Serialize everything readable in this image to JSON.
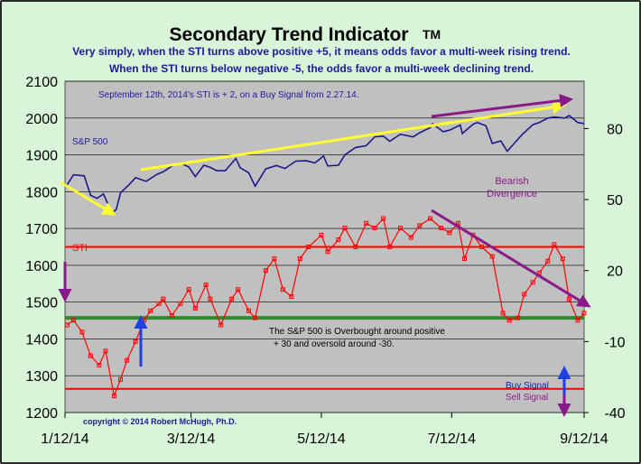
{
  "chart_data": {
    "type": "line",
    "title": "Secondary Trend Indicator",
    "title_mark": "TM",
    "subtitle_lines": [
      "Very simply, when the STI turns above positive +5, it means odds favor a multi-week rising trend.",
      "When the STI turns below negative -5, the odds favor a multi-week declining trend."
    ],
    "status_note": "September 12th, 2014's STI is + 2,  on a Buy Signal from 2.27.14.",
    "left_axis": {
      "range": [
        1200,
        2100
      ],
      "ticks": [
        "1200",
        "1300",
        "1400",
        "1500",
        "1600",
        "1700",
        "1800",
        "1900",
        "2000",
        "2100"
      ]
    },
    "right_axis": {
      "range": [
        -40,
        100
      ],
      "ticks": [
        "-40",
        "-10",
        "20",
        "50",
        "80"
      ]
    },
    "x_ticks": [
      "1/12/14",
      "3/12/14",
      "5/12/14",
      "7/12/14",
      "9/12/14"
    ],
    "x_range": [
      "2014-01-12",
      "2014-09-12"
    ],
    "series": [
      {
        "name": "S&P 500",
        "axis": "left",
        "color": "#1a1a8c",
        "points": [
          [
            "2014-01-13",
            1819
          ],
          [
            "2014-01-16",
            1846
          ],
          [
            "2014-01-21",
            1843
          ],
          [
            "2014-01-24",
            1790
          ],
          [
            "2014-01-27",
            1782
          ],
          [
            "2014-01-30",
            1794
          ],
          [
            "2014-02-03",
            1741
          ],
          [
            "2014-02-05",
            1752
          ],
          [
            "2014-02-07",
            1797
          ],
          [
            "2014-02-11",
            1819
          ],
          [
            "2014-02-14",
            1838
          ],
          [
            "2014-02-19",
            1828
          ],
          [
            "2014-02-24",
            1847
          ],
          [
            "2014-02-27",
            1854
          ],
          [
            "2014-03-04",
            1873
          ],
          [
            "2014-03-07",
            1878
          ],
          [
            "2014-03-11",
            1867
          ],
          [
            "2014-03-14",
            1841
          ],
          [
            "2014-03-18",
            1872
          ],
          [
            "2014-03-21",
            1866
          ],
          [
            "2014-03-24",
            1857
          ],
          [
            "2014-03-28",
            1857
          ],
          [
            "2014-04-02",
            1890
          ],
          [
            "2014-04-04",
            1865
          ],
          [
            "2014-04-08",
            1851
          ],
          [
            "2014-04-11",
            1815
          ],
          [
            "2014-04-16",
            1862
          ],
          [
            "2014-04-21",
            1871
          ],
          [
            "2014-04-25",
            1863
          ],
          [
            "2014-04-30",
            1883
          ],
          [
            "2014-05-05",
            1884
          ],
          [
            "2014-05-09",
            1878
          ],
          [
            "2014-05-13",
            1897
          ],
          [
            "2014-05-15",
            1870
          ],
          [
            "2014-05-20",
            1872
          ],
          [
            "2014-05-23",
            1900
          ],
          [
            "2014-05-28",
            1920
          ],
          [
            "2014-06-02",
            1925
          ],
          [
            "2014-06-06",
            1949
          ],
          [
            "2014-06-10",
            1951
          ],
          [
            "2014-06-13",
            1937
          ],
          [
            "2014-06-18",
            1956
          ],
          [
            "2014-06-24",
            1949
          ],
          [
            "2014-06-27",
            1960
          ],
          [
            "2014-07-02",
            1974
          ],
          [
            "2014-07-03",
            1985
          ],
          [
            "2014-07-08",
            1963
          ],
          [
            "2014-07-11",
            1967
          ],
          [
            "2014-07-16",
            1981
          ],
          [
            "2014-07-17",
            1958
          ],
          [
            "2014-07-22",
            1983
          ],
          [
            "2014-07-24",
            1988
          ],
          [
            "2014-07-28",
            1979
          ],
          [
            "2014-07-31",
            1931
          ],
          [
            "2014-08-04",
            1938
          ],
          [
            "2014-08-07",
            1910
          ],
          [
            "2014-08-11",
            1936
          ],
          [
            "2014-08-14",
            1955
          ],
          [
            "2014-08-19",
            1982
          ],
          [
            "2014-08-22",
            1988
          ],
          [
            "2014-08-26",
            2000
          ],
          [
            "2014-08-29",
            2003
          ],
          [
            "2014-09-03",
            2000
          ],
          [
            "2014-09-05",
            2007
          ],
          [
            "2014-09-09",
            1988
          ],
          [
            "2014-09-12",
            1985
          ]
        ]
      },
      {
        "name": "STI",
        "axis": "right",
        "color": "#ff0000",
        "points": [
          [
            "2014-01-13",
            -3
          ],
          [
            "2014-01-16",
            -1
          ],
          [
            "2014-01-20",
            -6
          ],
          [
            "2014-01-24",
            -16
          ],
          [
            "2014-01-28",
            -20
          ],
          [
            "2014-01-31",
            -14
          ],
          [
            "2014-02-04",
            -33
          ],
          [
            "2014-02-07",
            -26
          ],
          [
            "2014-02-10",
            -18
          ],
          [
            "2014-02-14",
            -10
          ],
          [
            "2014-02-18",
            -1
          ],
          [
            "2014-02-21",
            3
          ],
          [
            "2014-02-25",
            6
          ],
          [
            "2014-02-27",
            8
          ],
          [
            "2014-03-03",
            1
          ],
          [
            "2014-03-07",
            6
          ],
          [
            "2014-03-11",
            12
          ],
          [
            "2014-03-14",
            4
          ],
          [
            "2014-03-19",
            14
          ],
          [
            "2014-03-21",
            8
          ],
          [
            "2014-03-26",
            -3
          ],
          [
            "2014-03-31",
            8
          ],
          [
            "2014-04-03",
            12
          ],
          [
            "2014-04-08",
            3
          ],
          [
            "2014-04-11",
            0
          ],
          [
            "2014-04-16",
            20
          ],
          [
            "2014-04-20",
            25
          ],
          [
            "2014-04-24",
            12
          ],
          [
            "2014-04-28",
            9
          ],
          [
            "2014-05-02",
            25
          ],
          [
            "2014-05-06",
            30
          ],
          [
            "2014-05-12",
            35
          ],
          [
            "2014-05-15",
            28
          ],
          [
            "2014-05-20",
            33
          ],
          [
            "2014-05-23",
            38
          ],
          [
            "2014-05-28",
            30
          ],
          [
            "2014-06-02",
            40
          ],
          [
            "2014-06-06",
            38
          ],
          [
            "2014-06-10",
            42
          ],
          [
            "2014-06-13",
            30
          ],
          [
            "2014-06-18",
            38
          ],
          [
            "2014-06-23",
            34
          ],
          [
            "2014-06-27",
            39
          ],
          [
            "2014-07-02",
            42
          ],
          [
            "2014-07-07",
            38
          ],
          [
            "2014-07-11",
            36
          ],
          [
            "2014-07-15",
            40
          ],
          [
            "2014-07-18",
            25
          ],
          [
            "2014-07-22",
            35
          ],
          [
            "2014-07-26",
            30
          ],
          [
            "2014-07-31",
            26
          ],
          [
            "2014-08-05",
            2
          ],
          [
            "2014-08-08",
            -1
          ],
          [
            "2014-08-12",
            0
          ],
          [
            "2014-08-15",
            10
          ],
          [
            "2014-08-19",
            15
          ],
          [
            "2014-08-22",
            19
          ],
          [
            "2014-08-26",
            24
          ],
          [
            "2014-08-29",
            31
          ],
          [
            "2014-09-02",
            25
          ],
          [
            "2014-09-05",
            8
          ],
          [
            "2014-09-09",
            -1
          ],
          [
            "2014-09-12",
            2
          ]
        ]
      }
    ],
    "reference_lines": [
      {
        "label": "STI",
        "axis": "right",
        "value": 30,
        "color": "#ff0000"
      },
      {
        "label": "",
        "axis": "right",
        "value": 0,
        "color": "#2e8b2e"
      },
      {
        "label": "",
        "axis": "right",
        "value": -30,
        "color": "#ff0000"
      }
    ],
    "annotations": {
      "sp500_label": "S&P 500",
      "bearish_divergence": [
        "Bearish",
        "Divergence"
      ],
      "overbought_lines": [
        "The S&P 500 is Overbought around positive",
        "+ 30 and oversold around -30."
      ],
      "buy_signal": "Buy Signal",
      "sell_signal": "Sell Signal",
      "copyright": "copyright © 2014 Robert McHugh, Ph.D."
    },
    "grid": "horizontal",
    "plot_background": "#c0c0c0",
    "frame_background": "#d9f5d9"
  }
}
